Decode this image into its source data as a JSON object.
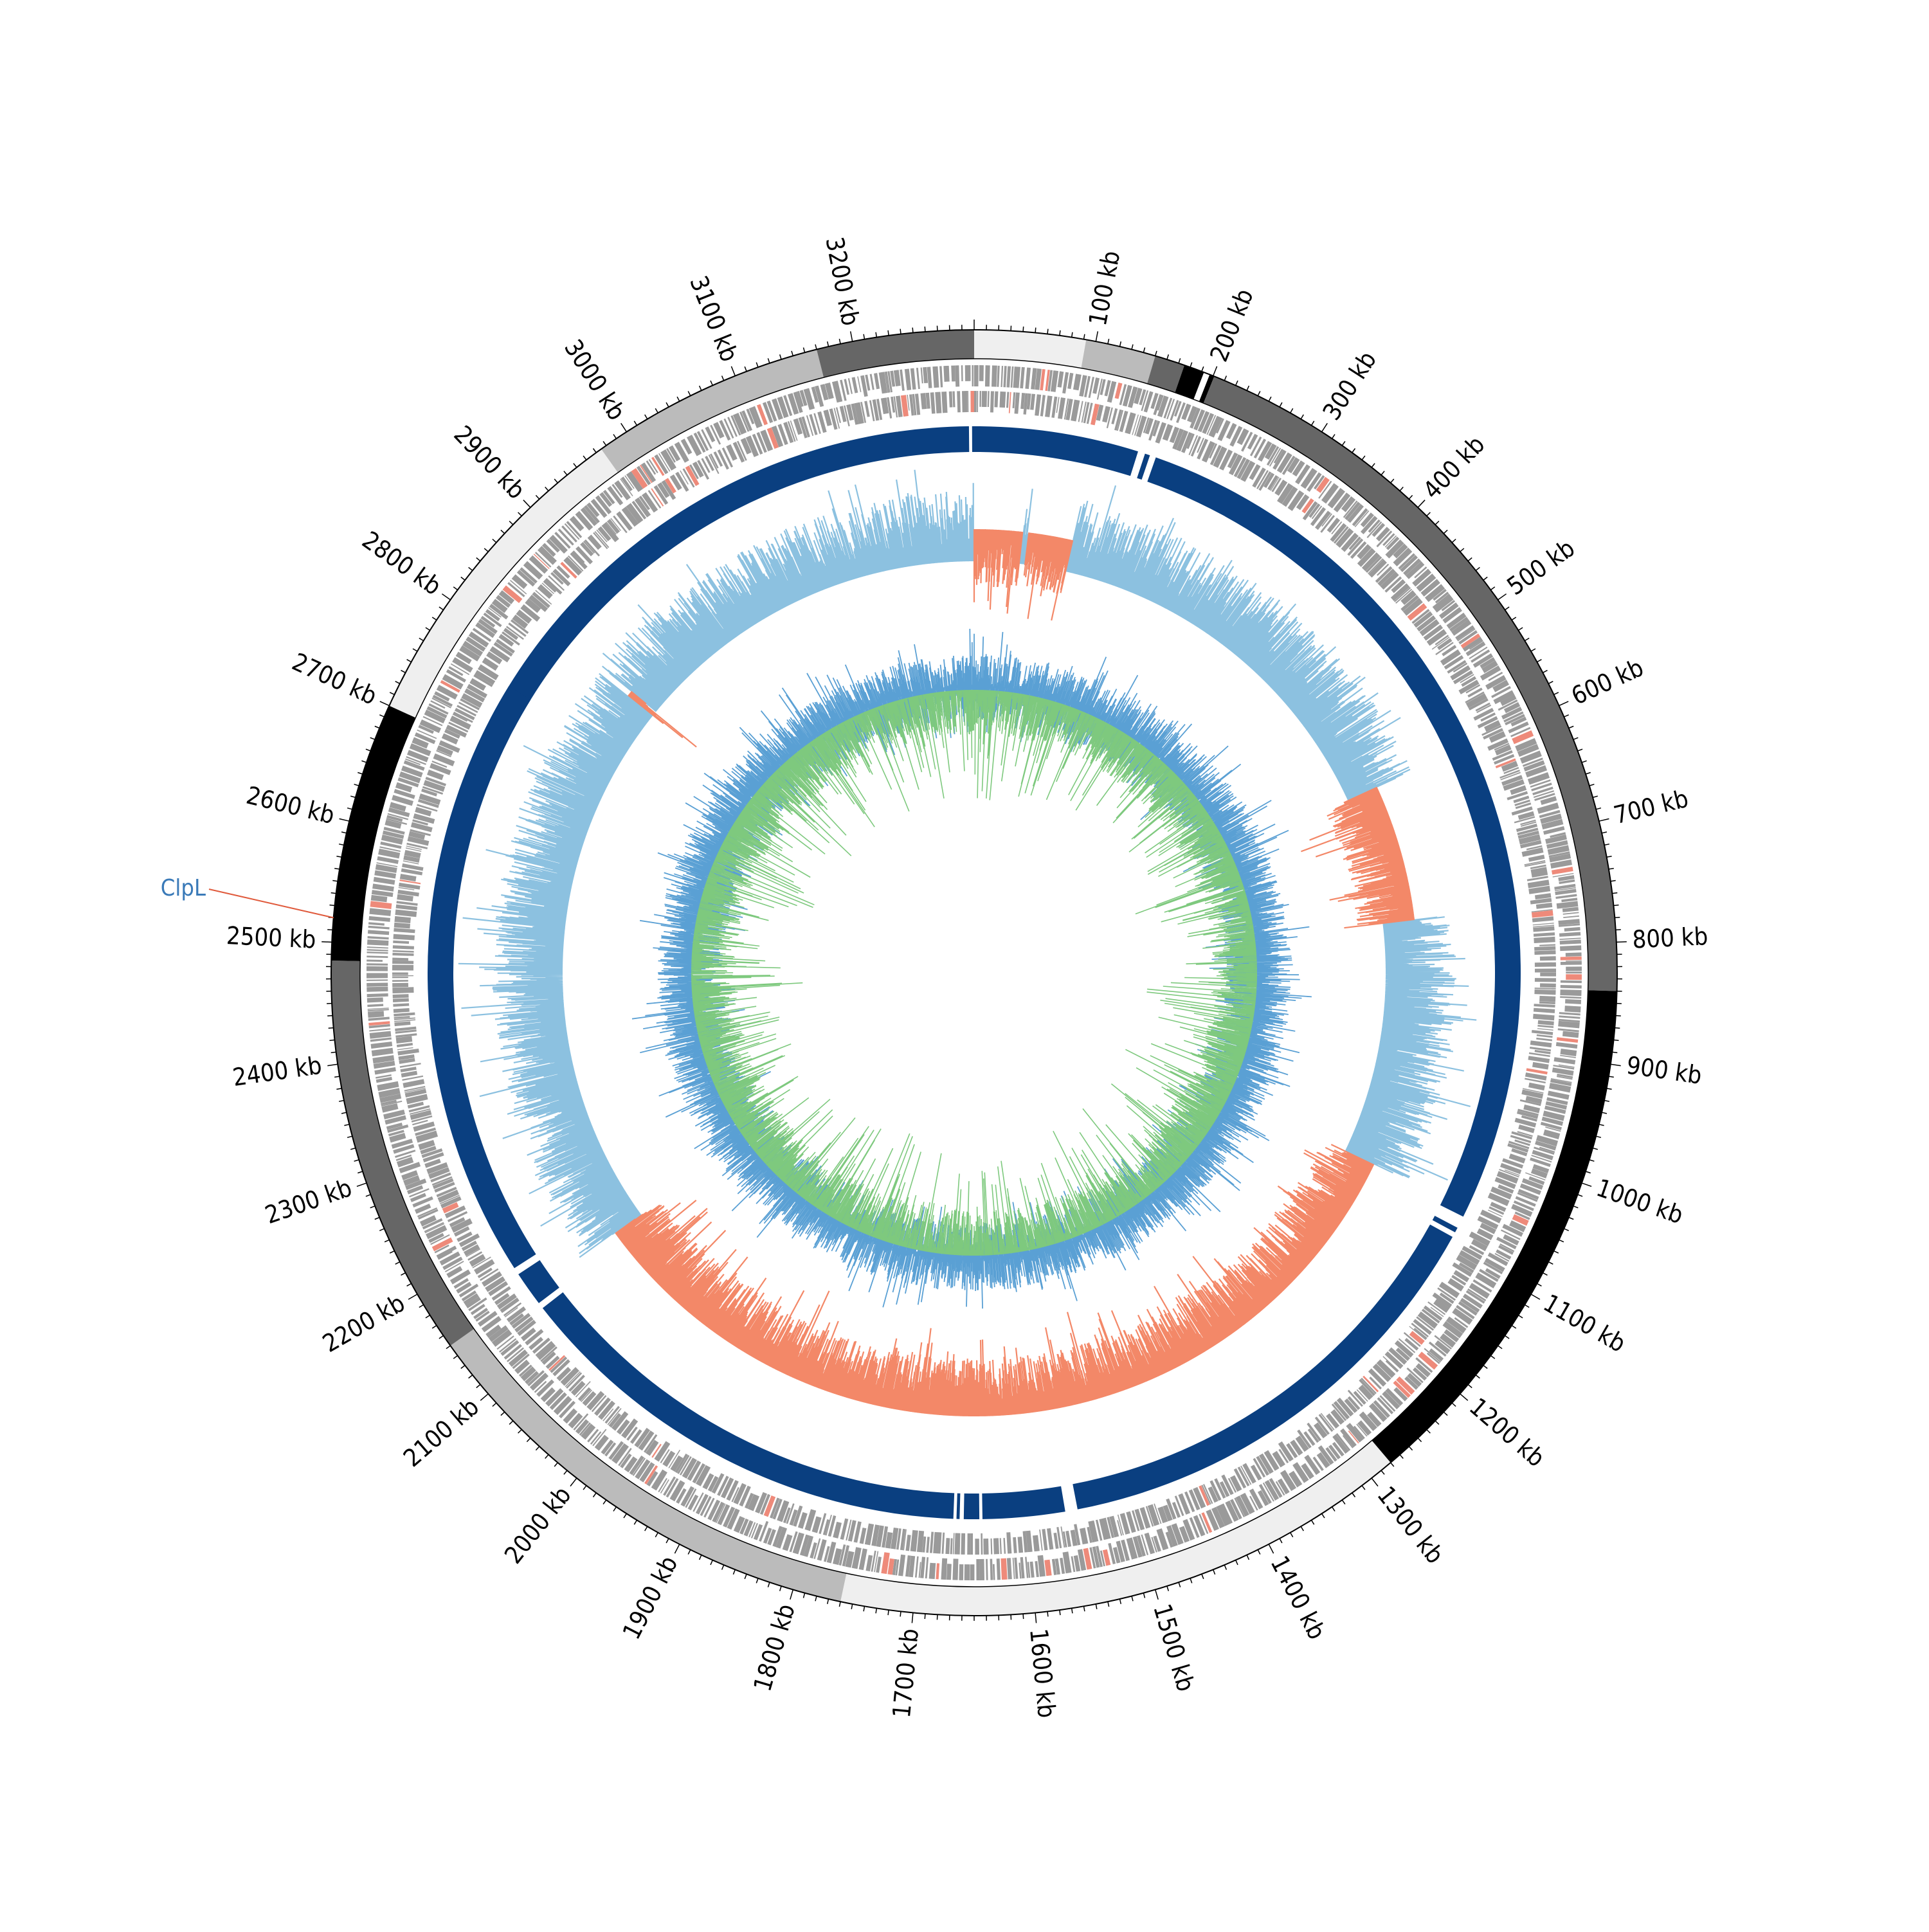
{
  "genome": {
    "length_kb": 3300,
    "tick_labels": [
      "100 kb",
      "200 kb",
      "300 kb",
      "400 kb",
      "500 kb",
      "600 kb",
      "700 kb",
      "800 kb",
      "900 kb",
      "1000 kb",
      "1100 kb",
      "1200 kb",
      "1300 kb",
      "1400 kb",
      "1500 kb",
      "1600 kb",
      "1700 kb",
      "1800 kb",
      "1900 kb",
      "2000 kb",
      "2100 kb",
      "2200 kb",
      "2300 kb",
      "2400 kb",
      "2500 kb",
      "2600 kb",
      "2700 kb",
      "2800 kb",
      "2900 kb",
      "3000 kb",
      "3100 kb",
      "3200 kb"
    ]
  },
  "segments": [
    {
      "start": 0,
      "end": 92,
      "color": "#efefef"
    },
    {
      "start": 92,
      "end": 150,
      "color": "#bbbbbb"
    },
    {
      "start": 150,
      "end": 175,
      "color": "#666666"
    },
    {
      "start": 175,
      "end": 192,
      "color": "#000000"
    },
    {
      "start": 192,
      "end": 197,
      "color": "#ffffff"
    },
    {
      "start": 197,
      "end": 201,
      "color": "#000000"
    },
    {
      "start": 201,
      "end": 840,
      "color": "#666666"
    },
    {
      "start": 840,
      "end": 1280,
      "color": "#000000"
    },
    {
      "start": 1280,
      "end": 1760,
      "color": "#efefef"
    },
    {
      "start": 1760,
      "end": 2150,
      "color": "#bbbbbb"
    },
    {
      "start": 2150,
      "end": 2485,
      "color": "#666666"
    },
    {
      "start": 2485,
      "end": 2700,
      "color": "#000000"
    },
    {
      "start": 2700,
      "end": 2975,
      "color": "#efefef"
    },
    {
      "start": 2975,
      "end": 3170,
      "color": "#bbbbbb"
    },
    {
      "start": 3170,
      "end": 3300,
      "color": "#666666"
    }
  ],
  "blast_blocks": [
    {
      "start": 2730,
      "end": 3295
    },
    {
      "start": 3298,
      "end": 3300
    },
    {
      "start": 0,
      "end": 160
    },
    {
      "start": 167,
      "end": 172
    },
    {
      "start": 178,
      "end": 1068
    },
    {
      "start": 1080,
      "end": 1085
    },
    {
      "start": 1090,
      "end": 1550
    },
    {
      "start": 1562,
      "end": 1642
    },
    {
      "start": 1645,
      "end": 1660
    },
    {
      "start": 1664,
      "end": 1667
    },
    {
      "start": 1670,
      "end": 2128
    },
    {
      "start": 2134,
      "end": 2168
    },
    {
      "start": 2175,
      "end": 2765
    }
  ],
  "gc_skew_negative_regions": [
    {
      "start": 0,
      "end": 58
    },
    {
      "start": 65,
      "end": 118
    },
    {
      "start": 598,
      "end": 762
    },
    {
      "start": 1060,
      "end": 2145
    },
    {
      "start": 2830,
      "end": 2836
    }
  ],
  "highlight": {
    "label": "ClpL",
    "position_kb": 2520,
    "label_color": "#2f74b5",
    "line_color": "#e05a3c"
  },
  "colors": {
    "gene_track": "#9a9a9a",
    "gene_highlight": "#ee8a7a",
    "blast": "#0a3f80",
    "skew_positive": "#8cc1e0",
    "skew_negative": "#f38868",
    "gc_content": "#5aa0d4",
    "gc_deviation": "#7ec97e"
  }
}
